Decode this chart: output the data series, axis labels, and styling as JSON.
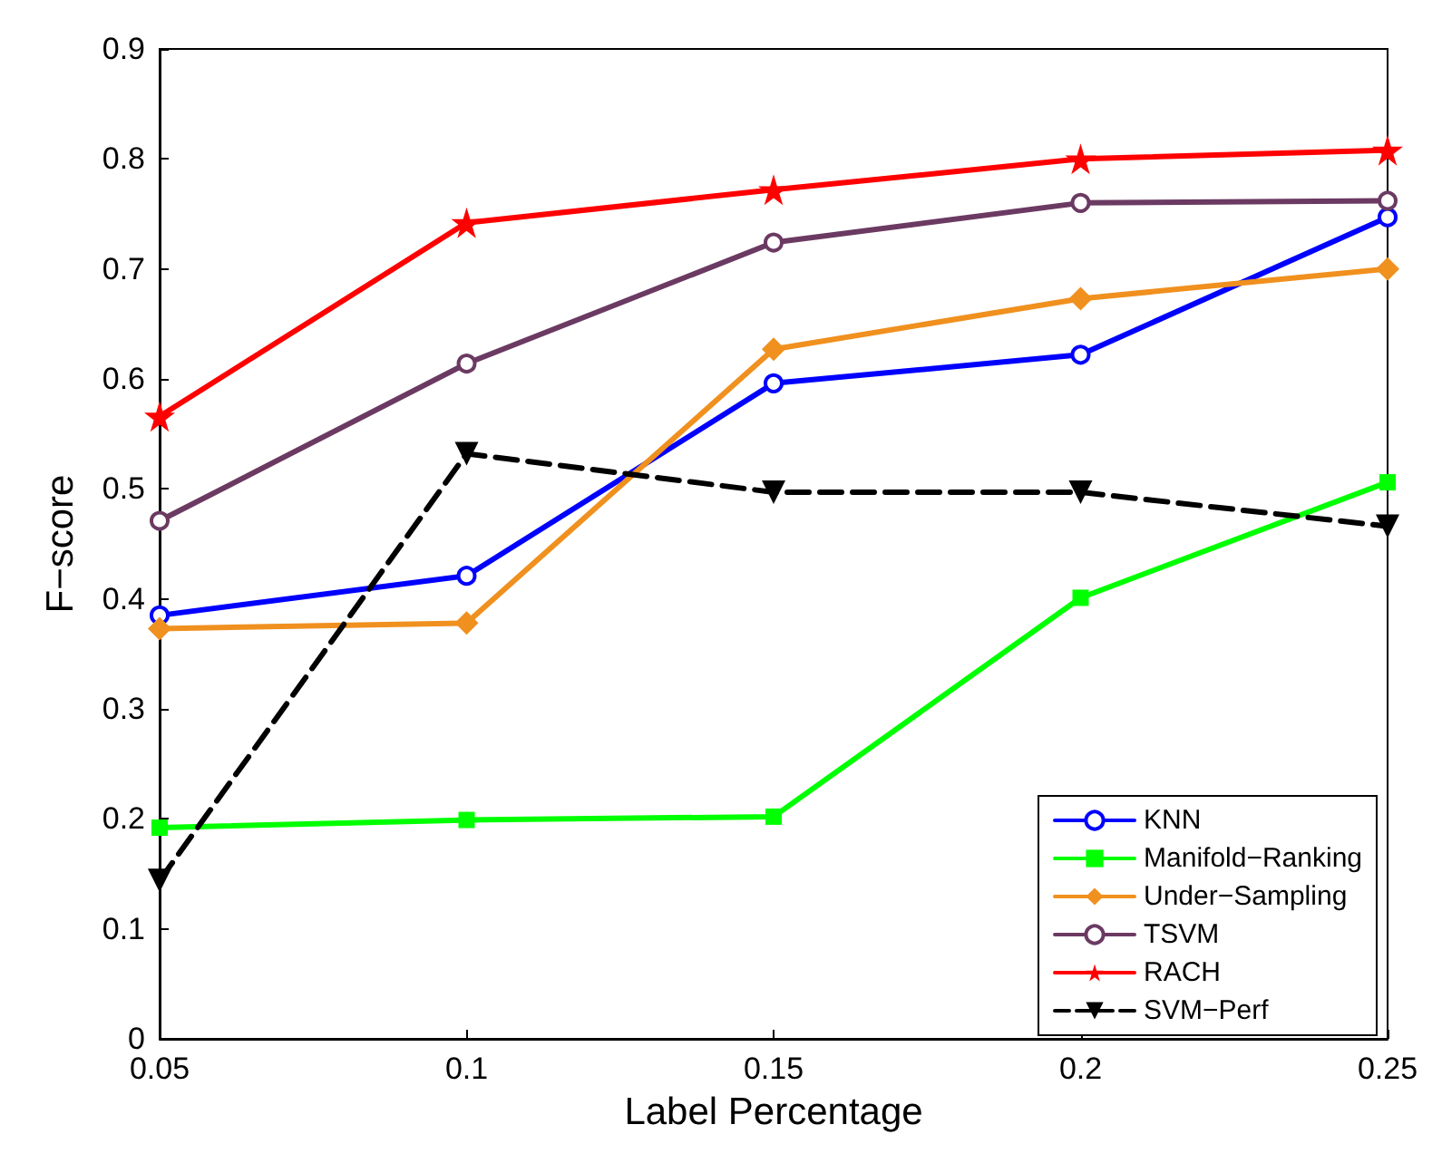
{
  "chart_data": {
    "type": "line",
    "xlabel": "Label Percentage",
    "ylabel": "F−score",
    "x": [
      0.05,
      0.1,
      0.15,
      0.2,
      0.25
    ],
    "xlim": [
      0.05,
      0.25
    ],
    "xticks": [
      0.05,
      0.1,
      0.15,
      0.2,
      0.25
    ],
    "ylim": [
      0,
      0.9
    ],
    "yticks": [
      0,
      0.1,
      0.2,
      0.3,
      0.4,
      0.5,
      0.6,
      0.7,
      0.8,
      0.9
    ],
    "grid": false,
    "legend": "bottom right",
    "series": [
      {
        "name": "KNN",
        "color": "#0000ff",
        "marker": "circle",
        "line_style": "solid",
        "values": [
          0.385,
          0.421,
          0.596,
          0.622,
          0.747
        ]
      },
      {
        "name": "Manifold−Ranking",
        "color": "#00ff00",
        "marker": "square",
        "line_style": "solid",
        "values": [
          0.192,
          0.199,
          0.202,
          0.401,
          0.506
        ]
      },
      {
        "name": "Under−Sampling",
        "color": "#f0901e",
        "marker": "diamond",
        "line_style": "solid",
        "values": [
          0.373,
          0.378,
          0.627,
          0.673,
          0.7
        ]
      },
      {
        "name": "TSVM",
        "color": "#6b3a62",
        "marker": "circle",
        "line_style": "solid",
        "values": [
          0.471,
          0.614,
          0.724,
          0.76,
          0.762
        ]
      },
      {
        "name": "RACH",
        "color": "#ff0000",
        "marker": "star",
        "line_style": "solid",
        "values": [
          0.566,
          0.742,
          0.772,
          0.8,
          0.808
        ]
      },
      {
        "name": "SVM−Perf",
        "color": "#000000",
        "marker": "triangle",
        "line_style": "dashed",
        "values": [
          0.144,
          0.532,
          0.497,
          0.497,
          0.466
        ]
      }
    ]
  }
}
